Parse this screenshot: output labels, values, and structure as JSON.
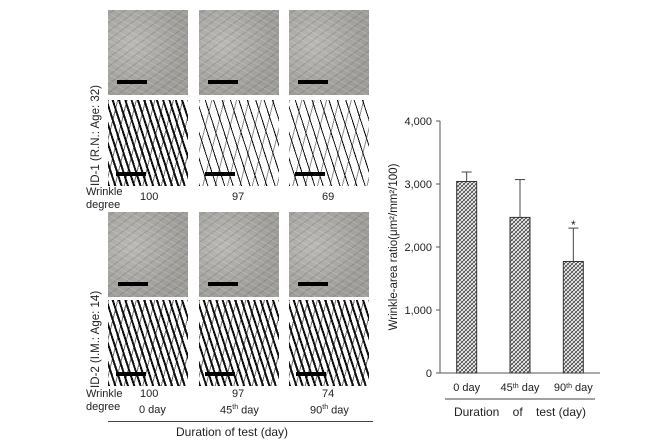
{
  "rows": [
    {
      "label": "ID-1 (R.N.: Age: 32)",
      "wrinkle_degree": [
        "100",
        "97",
        "69"
      ]
    },
    {
      "label": "ID-2 (I.M.: Age: 14)",
      "wrinkle_degree": [
        "100",
        "97",
        "74"
      ]
    }
  ],
  "wrinkle_label": [
    "Wrinkle",
    "degree"
  ],
  "left_days": [
    "0 day",
    "45",
    "th",
    " day",
    "90",
    "th",
    " day"
  ],
  "left_xlabel": "Duration  of  test (day)",
  "chart_data": {
    "type": "bar",
    "categories": [
      "0 day",
      "45th day",
      "90th day"
    ],
    "values": [
      3040,
      2470,
      1770
    ],
    "errors": [
      150,
      600,
      530
    ],
    "significance": [
      "",
      "",
      "*"
    ],
    "ylabel": "Wrinkle-area ratio(μm²/mm²/100)",
    "xlabel": "Duration    of    test (day)",
    "ylim": [
      0,
      4000
    ],
    "yticks": [
      "0",
      "1,000",
      "2,000",
      "3,000",
      "4,000"
    ],
    "bar_pattern": "crosshatch",
    "grid": false
  }
}
